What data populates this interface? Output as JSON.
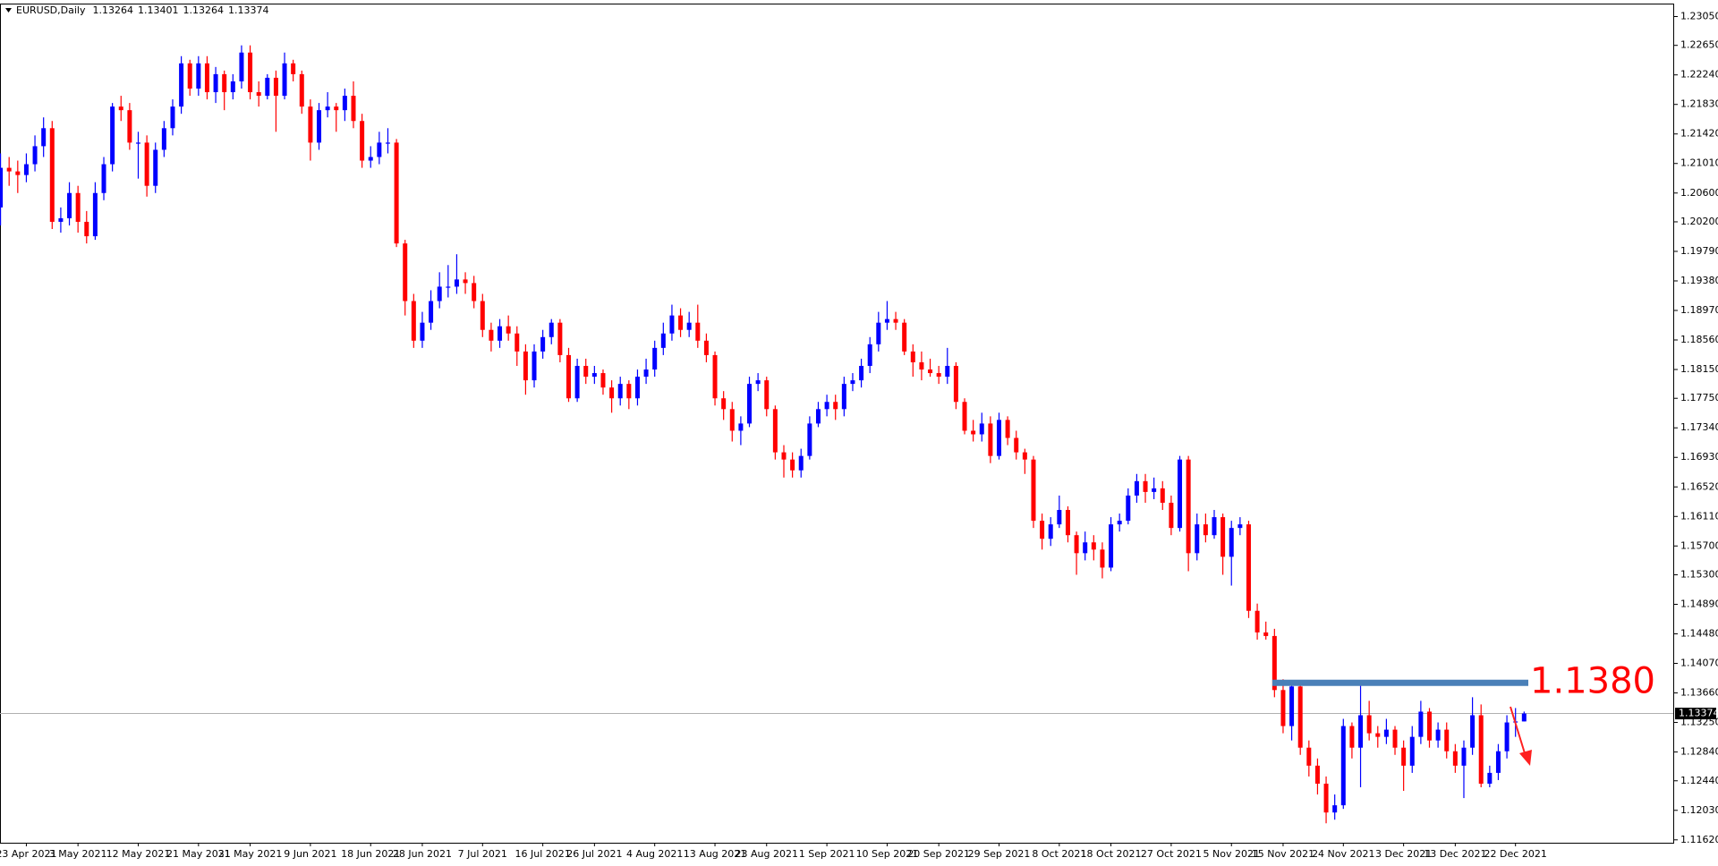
{
  "chart_data": {
    "type": "candlestick",
    "symbol": "EURUSD,Daily",
    "up_color": "#0000ff",
    "down_color": "#ff0000",
    "ylim": [
      1.1158,
      1.2323
    ],
    "yticks": [
      {
        "value": 1.2305,
        "label": "1.23050"
      },
      {
        "value": 1.2265,
        "label": "1.22650"
      },
      {
        "value": 1.2224,
        "label": "1.22240"
      },
      {
        "value": 1.2183,
        "label": "1.21830"
      },
      {
        "value": 1.2142,
        "label": "1.21420"
      },
      {
        "value": 1.2101,
        "label": "1.21010"
      },
      {
        "value": 1.206,
        "label": "1.20600"
      },
      {
        "value": 1.202,
        "label": "1.20200"
      },
      {
        "value": 1.1979,
        "label": "1.19790"
      },
      {
        "value": 1.1938,
        "label": "1.19380"
      },
      {
        "value": 1.1897,
        "label": "1.18970"
      },
      {
        "value": 1.1856,
        "label": "1.18560"
      },
      {
        "value": 1.1815,
        "label": "1.18150"
      },
      {
        "value": 1.1775,
        "label": "1.17750"
      },
      {
        "value": 1.1734,
        "label": "1.17340"
      },
      {
        "value": 1.1693,
        "label": "1.16930"
      },
      {
        "value": 1.1652,
        "label": "1.16520"
      },
      {
        "value": 1.1611,
        "label": "1.16110"
      },
      {
        "value": 1.157,
        "label": "1.15700"
      },
      {
        "value": 1.153,
        "label": "1.15300"
      },
      {
        "value": 1.1489,
        "label": "1.14890"
      },
      {
        "value": 1.1448,
        "label": "1.14480"
      },
      {
        "value": 1.1407,
        "label": "1.14070"
      },
      {
        "value": 1.1366,
        "label": "1.13660"
      },
      {
        "value": 1.1325,
        "label": "1.13250"
      },
      {
        "value": 1.1284,
        "label": "1.12840"
      },
      {
        "value": 1.1244,
        "label": "1.12440"
      },
      {
        "value": 1.1203,
        "label": "1.12030"
      },
      {
        "value": 1.1162,
        "label": "1.11620"
      }
    ],
    "resistance": {
      "value": 1.138,
      "label": "1.1380",
      "color": "#4a80b8",
      "label_color": "#ff0000"
    },
    "categories": [
      null,
      null,
      null,
      "23 Apr 2021",
      null,
      null,
      null,
      null,
      null,
      "3 May 2021",
      null,
      null,
      null,
      null,
      null,
      null,
      "12 May 2021",
      null,
      null,
      null,
      null,
      null,
      null,
      "21 May 2021",
      null,
      null,
      null,
      null,
      null,
      "31 May 2021",
      null,
      null,
      null,
      null,
      null,
      null,
      "9 Jun 2021",
      null,
      null,
      null,
      null,
      null,
      null,
      "18 Jun 2021",
      null,
      null,
      null,
      null,
      null,
      "28 Jun 2021",
      null,
      null,
      null,
      null,
      null,
      null,
      "7 Jul 2021",
      null,
      null,
      null,
      null,
      null,
      null,
      "16 Jul 2021",
      null,
      null,
      null,
      null,
      null,
      "26 Jul 2021",
      null,
      null,
      null,
      null,
      null,
      null,
      "4 Aug 2021",
      null,
      null,
      null,
      null,
      null,
      null,
      "13 Aug 2021",
      null,
      null,
      null,
      null,
      null,
      "23 Aug 2021",
      null,
      null,
      null,
      null,
      null,
      null,
      "1 Sep 2021",
      null,
      null,
      null,
      null,
      null,
      null,
      "10 Sep 2021",
      null,
      null,
      null,
      null,
      null,
      "20 Sep 2021",
      null,
      null,
      null,
      null,
      null,
      null,
      "29 Sep 2021",
      null,
      null,
      null,
      null,
      null,
      null,
      "8 Oct 2021",
      null,
      null,
      null,
      null,
      null,
      "18 Oct 2021",
      null,
      null,
      null,
      null,
      null,
      null,
      "27 Oct 2021",
      null,
      null,
      null,
      null,
      null,
      null,
      "5 Nov 2021",
      null,
      null,
      null,
      null,
      null,
      "15 Nov 2021",
      null,
      null,
      null,
      null,
      null,
      null,
      "24 Nov 2021",
      null,
      null,
      null,
      null,
      null,
      null,
      "3 Dec 2021",
      null,
      null,
      null,
      null,
      null,
      "13 Dec 2021",
      null,
      null,
      null,
      null,
      null,
      null,
      "22 Dec 2021",
      null
    ],
    "candles": [
      [
        1.204,
        1.2115,
        1.2015,
        1.2095
      ],
      [
        1.2095,
        1.211,
        1.207,
        1.209
      ],
      [
        1.209,
        1.2105,
        1.206,
        1.2085
      ],
      [
        1.2085,
        1.2115,
        1.2075,
        1.21
      ],
      [
        1.21,
        1.214,
        1.209,
        1.2125
      ],
      [
        1.2125,
        1.2165,
        1.211,
        1.215
      ],
      [
        1.215,
        1.216,
        1.201,
        1.202
      ],
      [
        1.202,
        1.204,
        1.2005,
        1.2025
      ],
      [
        1.2025,
        1.2075,
        1.2015,
        1.206
      ],
      [
        1.206,
        1.207,
        1.2005,
        1.202
      ],
      [
        1.202,
        1.2035,
        1.199,
        1.2
      ],
      [
        1.2,
        1.2075,
        1.1995,
        1.206
      ],
      [
        1.206,
        1.211,
        1.205,
        1.21
      ],
      [
        1.21,
        1.2185,
        1.209,
        1.218
      ],
      [
        1.218,
        1.2195,
        1.216,
        1.2175
      ],
      [
        1.2175,
        1.2185,
        1.212,
        1.213
      ],
      [
        1.213,
        1.2145,
        1.208,
        1.213
      ],
      [
        1.213,
        1.214,
        1.2055,
        1.207
      ],
      [
        1.207,
        1.213,
        1.206,
        1.212
      ],
      [
        1.212,
        1.216,
        1.211,
        1.215
      ],
      [
        1.215,
        1.219,
        1.214,
        1.218
      ],
      [
        1.218,
        1.225,
        1.217,
        1.224
      ],
      [
        1.224,
        1.2245,
        1.2195,
        1.2205
      ],
      [
        1.2205,
        1.225,
        1.2195,
        1.224
      ],
      [
        1.224,
        1.225,
        1.219,
        1.22
      ],
      [
        1.22,
        1.2235,
        1.2185,
        1.2225
      ],
      [
        1.2225,
        1.223,
        1.2175,
        1.22
      ],
      [
        1.22,
        1.2225,
        1.219,
        1.2215
      ],
      [
        1.2215,
        1.2265,
        1.2205,
        1.2255
      ],
      [
        1.2255,
        1.2265,
        1.219,
        1.22
      ],
      [
        1.22,
        1.2215,
        1.218,
        1.2195
      ],
      [
        1.2195,
        1.2225,
        1.219,
        1.222
      ],
      [
        1.222,
        1.223,
        1.2145,
        1.2195
      ],
      [
        1.2195,
        1.2255,
        1.219,
        1.224
      ],
      [
        1.224,
        1.2245,
        1.2215,
        1.2225
      ],
      [
        1.2225,
        1.223,
        1.217,
        1.218
      ],
      [
        1.218,
        1.219,
        1.2105,
        1.213
      ],
      [
        1.213,
        1.2185,
        1.212,
        1.2175
      ],
      [
        1.2175,
        1.22,
        1.2165,
        1.218
      ],
      [
        1.218,
        1.2185,
        1.2145,
        1.2175
      ],
      [
        1.2175,
        1.2205,
        1.216,
        1.2195
      ],
      [
        1.2195,
        1.2215,
        1.215,
        1.216
      ],
      [
        1.216,
        1.217,
        1.2095,
        1.2105
      ],
      [
        1.2105,
        1.2125,
        1.2095,
        1.211
      ],
      [
        1.211,
        1.2145,
        1.21,
        1.213
      ],
      [
        1.213,
        1.215,
        1.2115,
        1.213
      ],
      [
        1.213,
        1.2135,
        1.1985,
        1.199
      ],
      [
        1.199,
        1.1995,
        1.189,
        1.191
      ],
      [
        1.191,
        1.192,
        1.1845,
        1.1855
      ],
      [
        1.1855,
        1.1895,
        1.1845,
        1.188
      ],
      [
        1.188,
        1.1925,
        1.187,
        1.191
      ],
      [
        1.191,
        1.195,
        1.19,
        1.193
      ],
      [
        1.193,
        1.196,
        1.1915,
        1.193
      ],
      [
        1.193,
        1.1975,
        1.192,
        1.194
      ],
      [
        1.194,
        1.195,
        1.192,
        1.1935
      ],
      [
        1.1935,
        1.1945,
        1.19,
        1.191
      ],
      [
        1.191,
        1.192,
        1.186,
        1.187
      ],
      [
        1.187,
        1.188,
        1.184,
        1.1855
      ],
      [
        1.1855,
        1.1885,
        1.1845,
        1.1875
      ],
      [
        1.1875,
        1.189,
        1.1855,
        1.1865
      ],
      [
        1.1865,
        1.1875,
        1.182,
        1.184
      ],
      [
        1.184,
        1.185,
        1.178,
        1.18
      ],
      [
        1.18,
        1.185,
        1.179,
        1.184
      ],
      [
        1.184,
        1.187,
        1.183,
        1.186
      ],
      [
        1.186,
        1.1885,
        1.185,
        1.188
      ],
      [
        1.188,
        1.1885,
        1.1825,
        1.1835
      ],
      [
        1.1835,
        1.1845,
        1.177,
        1.1775
      ],
      [
        1.1775,
        1.183,
        1.177,
        1.182
      ],
      [
        1.182,
        1.183,
        1.1795,
        1.1805
      ],
      [
        1.1805,
        1.182,
        1.1795,
        1.181
      ],
      [
        1.181,
        1.1815,
        1.178,
        1.179
      ],
      [
        1.179,
        1.18,
        1.1755,
        1.1775
      ],
      [
        1.1775,
        1.1805,
        1.1765,
        1.1795
      ],
      [
        1.1795,
        1.18,
        1.176,
        1.1775
      ],
      [
        1.1775,
        1.1815,
        1.1765,
        1.1805
      ],
      [
        1.1805,
        1.183,
        1.1795,
        1.1815
      ],
      [
        1.1815,
        1.1855,
        1.1805,
        1.1845
      ],
      [
        1.1845,
        1.188,
        1.1835,
        1.1865
      ],
      [
        1.1865,
        1.1905,
        1.1855,
        1.189
      ],
      [
        1.189,
        1.19,
        1.186,
        1.187
      ],
      [
        1.187,
        1.1895,
        1.186,
        1.188
      ],
      [
        1.188,
        1.1905,
        1.1845,
        1.1855
      ],
      [
        1.1855,
        1.1865,
        1.1825,
        1.1835
      ],
      [
        1.1835,
        1.184,
        1.1765,
        1.1775
      ],
      [
        1.1775,
        1.1785,
        1.1745,
        1.176
      ],
      [
        1.176,
        1.177,
        1.1715,
        1.173
      ],
      [
        1.173,
        1.175,
        1.171,
        1.174
      ],
      [
        1.174,
        1.1805,
        1.1735,
        1.1795
      ],
      [
        1.1795,
        1.181,
        1.1785,
        1.18
      ],
      [
        1.18,
        1.1805,
        1.175,
        1.176
      ],
      [
        1.176,
        1.1765,
        1.169,
        1.17
      ],
      [
        1.17,
        1.171,
        1.1665,
        1.169
      ],
      [
        1.169,
        1.17,
        1.1665,
        1.1675
      ],
      [
        1.1675,
        1.1705,
        1.1665,
        1.1695
      ],
      [
        1.1695,
        1.175,
        1.169,
        1.174
      ],
      [
        1.174,
        1.177,
        1.1735,
        1.176
      ],
      [
        1.176,
        1.178,
        1.175,
        1.177
      ],
      [
        1.177,
        1.178,
        1.1745,
        1.176
      ],
      [
        1.176,
        1.1805,
        1.175,
        1.1795
      ],
      [
        1.1795,
        1.181,
        1.1785,
        1.18
      ],
      [
        1.18,
        1.183,
        1.179,
        1.182
      ],
      [
        1.182,
        1.186,
        1.181,
        1.185
      ],
      [
        1.185,
        1.1895,
        1.184,
        1.188
      ],
      [
        1.188,
        1.191,
        1.187,
        1.1885
      ],
      [
        1.1885,
        1.1895,
        1.187,
        1.188
      ],
      [
        1.188,
        1.1885,
        1.1835,
        1.184
      ],
      [
        1.184,
        1.185,
        1.1805,
        1.1825
      ],
      [
        1.1825,
        1.184,
        1.18,
        1.1815
      ],
      [
        1.1815,
        1.183,
        1.1805,
        1.181
      ],
      [
        1.181,
        1.182,
        1.1795,
        1.1805
      ],
      [
        1.1805,
        1.1845,
        1.1795,
        1.182
      ],
      [
        1.182,
        1.1825,
        1.176,
        1.177
      ],
      [
        1.177,
        1.1775,
        1.1725,
        1.173
      ],
      [
        1.173,
        1.1745,
        1.1715,
        1.1725
      ],
      [
        1.1725,
        1.1755,
        1.1715,
        1.174
      ],
      [
        1.174,
        1.175,
        1.1685,
        1.1695
      ],
      [
        1.1695,
        1.1755,
        1.169,
        1.1745
      ],
      [
        1.1745,
        1.175,
        1.171,
        1.172
      ],
      [
        1.172,
        1.173,
        1.169,
        1.17
      ],
      [
        1.17,
        1.1705,
        1.167,
        1.169
      ],
      [
        1.169,
        1.1695,
        1.1595,
        1.1605
      ],
      [
        1.1605,
        1.1615,
        1.1565,
        1.158
      ],
      [
        1.158,
        1.161,
        1.157,
        1.16
      ],
      [
        1.16,
        1.164,
        1.1595,
        1.162
      ],
      [
        1.162,
        1.1625,
        1.1575,
        1.1585
      ],
      [
        1.1585,
        1.159,
        1.153,
        1.156
      ],
      [
        1.156,
        1.159,
        1.155,
        1.1575
      ],
      [
        1.1575,
        1.1585,
        1.155,
        1.1565
      ],
      [
        1.1565,
        1.1575,
        1.1525,
        1.154
      ],
      [
        1.154,
        1.161,
        1.1535,
        1.16
      ],
      [
        1.16,
        1.1615,
        1.159,
        1.1605
      ],
      [
        1.1605,
        1.165,
        1.16,
        1.164
      ],
      [
        1.164,
        1.167,
        1.163,
        1.166
      ],
      [
        1.166,
        1.167,
        1.163,
        1.1645
      ],
      [
        1.1645,
        1.1665,
        1.1635,
        1.165
      ],
      [
        1.165,
        1.166,
        1.162,
        1.163
      ],
      [
        1.163,
        1.164,
        1.1585,
        1.1595
      ],
      [
        1.1595,
        1.1695,
        1.159,
        1.169
      ],
      [
        1.169,
        1.1695,
        1.1535,
        1.156
      ],
      [
        1.156,
        1.1615,
        1.155,
        1.16
      ],
      [
        1.16,
        1.1615,
        1.1575,
        1.1585
      ],
      [
        1.1585,
        1.162,
        1.158,
        1.161
      ],
      [
        1.161,
        1.1615,
        1.153,
        1.1555
      ],
      [
        1.1555,
        1.1605,
        1.1515,
        1.1595
      ],
      [
        1.1595,
        1.161,
        1.1585,
        1.16
      ],
      [
        1.16,
        1.1605,
        1.147,
        1.148
      ],
      [
        1.148,
        1.149,
        1.144,
        1.145
      ],
      [
        1.145,
        1.1465,
        1.144,
        1.1445
      ],
      [
        1.1445,
        1.1455,
        1.136,
        1.137
      ],
      [
        1.137,
        1.1385,
        1.131,
        1.132
      ],
      [
        1.132,
        1.138,
        1.13,
        1.1375
      ],
      [
        1.1375,
        1.138,
        1.128,
        1.129
      ],
      [
        1.129,
        1.13,
        1.125,
        1.1265
      ],
      [
        1.1265,
        1.1275,
        1.1225,
        1.124
      ],
      [
        1.124,
        1.125,
        1.1185,
        1.12
      ],
      [
        1.12,
        1.1225,
        1.119,
        1.121
      ],
      [
        1.121,
        1.133,
        1.1205,
        1.132
      ],
      [
        1.132,
        1.1325,
        1.1275,
        1.129
      ],
      [
        1.129,
        1.138,
        1.1235,
        1.1335
      ],
      [
        1.1335,
        1.1355,
        1.13,
        1.131
      ],
      [
        1.131,
        1.132,
        1.129,
        1.1305
      ],
      [
        1.1305,
        1.133,
        1.1295,
        1.1315
      ],
      [
        1.1315,
        1.132,
        1.128,
        1.129
      ],
      [
        1.129,
        1.13,
        1.123,
        1.1265
      ],
      [
        1.1265,
        1.132,
        1.1255,
        1.1305
      ],
      [
        1.1305,
        1.1355,
        1.1295,
        1.134
      ],
      [
        1.134,
        1.1345,
        1.129,
        1.13
      ],
      [
        1.13,
        1.1325,
        1.129,
        1.1315
      ],
      [
        1.1315,
        1.1325,
        1.1275,
        1.1285
      ],
      [
        1.1285,
        1.1295,
        1.1255,
        1.1265
      ],
      [
        1.1265,
        1.13,
        1.122,
        1.129
      ],
      [
        1.129,
        1.136,
        1.128,
        1.1335
      ],
      [
        1.1335,
        1.135,
        1.1235,
        1.124
      ],
      [
        1.124,
        1.1265,
        1.1235,
        1.1255
      ],
      [
        1.1255,
        1.1295,
        1.1245,
        1.1285
      ],
      [
        1.1285,
        1.1335,
        1.1275,
        1.1325
      ],
      [
        1.1325,
        1.1345,
        1.1305,
        1.13264
      ],
      [
        1.13264,
        1.13401,
        1.13264,
        1.13374
      ]
    ]
  }
}
